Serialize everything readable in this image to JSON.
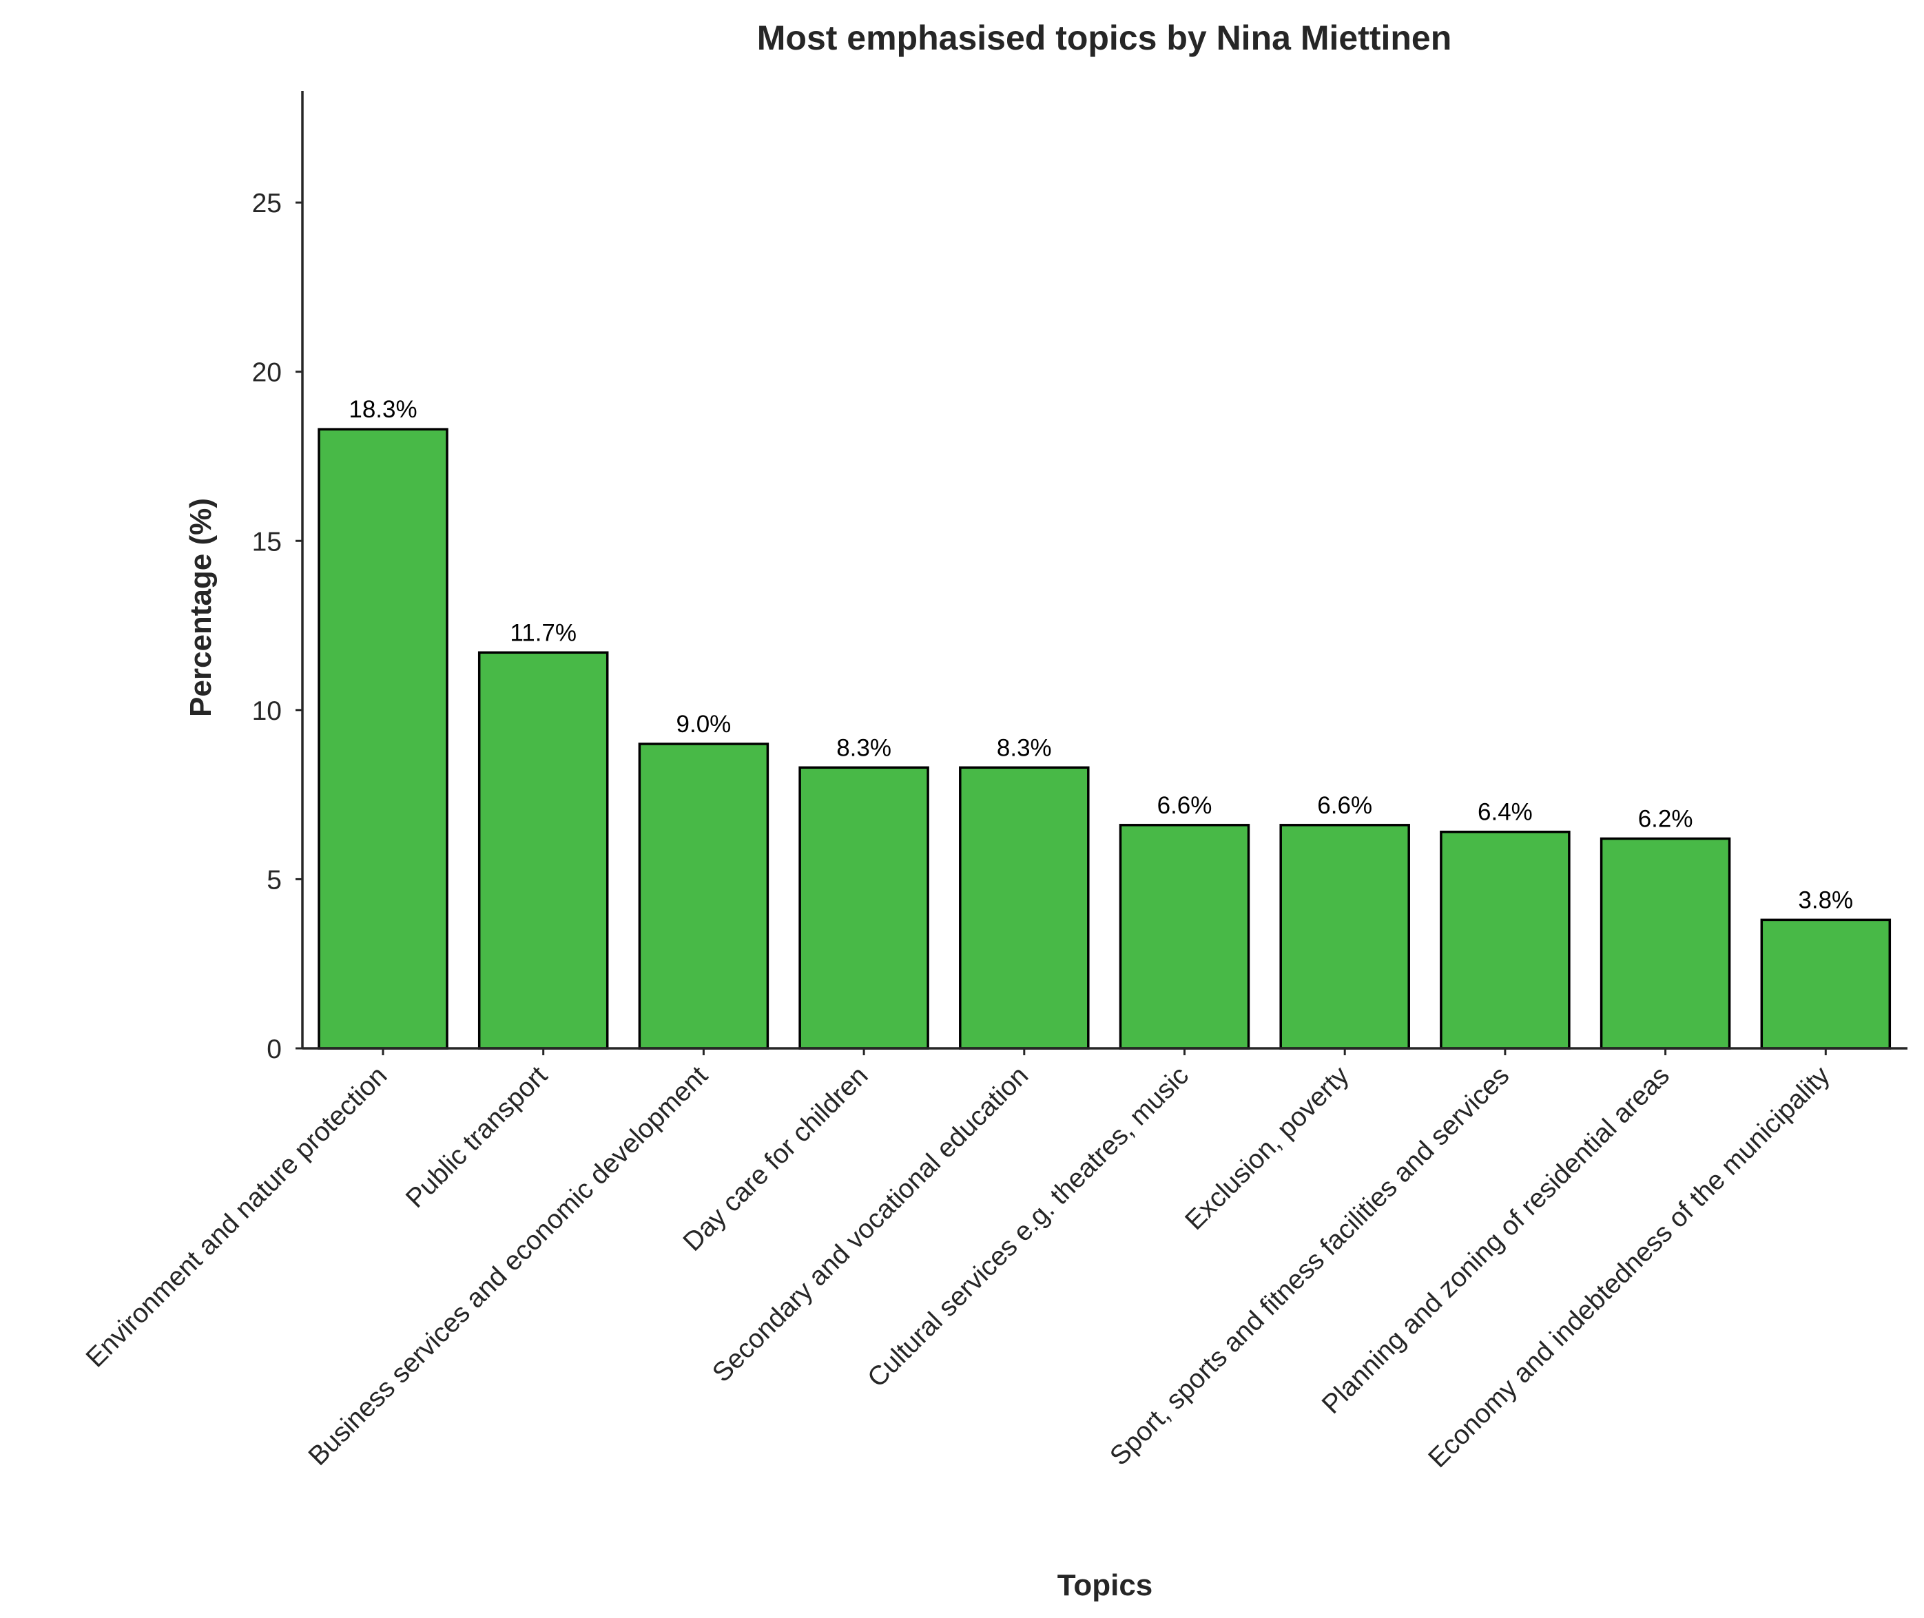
{
  "chart_data": {
    "type": "bar",
    "title": "Most emphasised topics by Nina Miettinen",
    "xlabel": "Topics",
    "ylabel": "Percentage (%)",
    "categories": [
      "Environment and nature protection",
      "Public transport",
      "Business services and economic development",
      "Day care for children",
      "Secondary and vocational education",
      "Cultural services e.g. theatres, music",
      "Exclusion, poverty",
      "Sport, sports and fitness facilities and services",
      "Planning and zoning of residential areas",
      "Economy and indebtedness of the municipality"
    ],
    "values": [
      18.3,
      11.7,
      9.0,
      8.3,
      8.3,
      6.6,
      6.6,
      6.4,
      6.2,
      3.8
    ],
    "data_labels": [
      "18.3%",
      "11.7%",
      "9.0%",
      "8.3%",
      "8.3%",
      "6.6%",
      "6.6%",
      "6.4%",
      "6.2%",
      "3.8%"
    ],
    "ylim": [
      0,
      28.3
    ],
    "yticks": [
      0,
      5,
      10,
      15,
      20,
      25
    ],
    "grid": false,
    "legend": "none",
    "bar_color": "#48b947",
    "edge_color": "#000000"
  }
}
